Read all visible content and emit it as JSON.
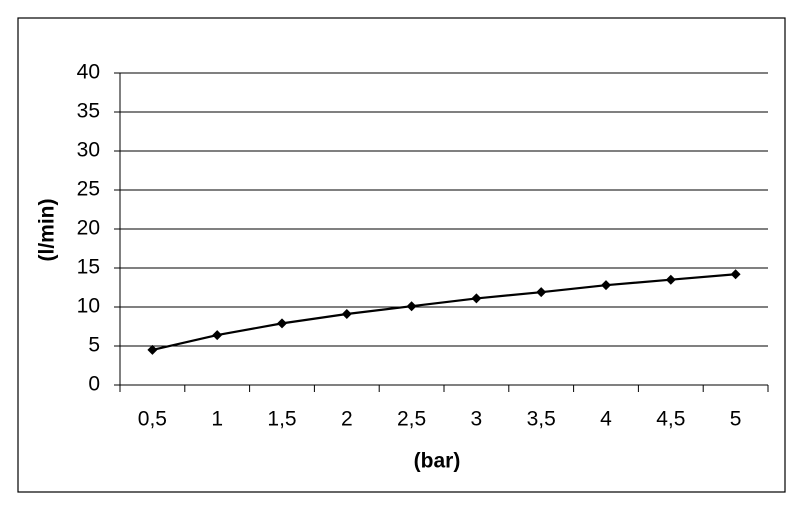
{
  "chart_data": {
    "type": "line",
    "x_label": "(bar)",
    "y_label": "(l/min)",
    "categories": [
      "0,5",
      "1",
      "1,5",
      "2",
      "2,5",
      "3",
      "3,5",
      "4",
      "4,5",
      "5"
    ],
    "values": [
      4.5,
      6.4,
      7.9,
      9.1,
      10.1,
      11.1,
      11.9,
      12.8,
      13.5,
      14.2
    ],
    "color": "#000000",
    "ylim": [
      0,
      40
    ],
    "yticks": [
      0,
      5,
      10,
      15,
      20,
      25,
      30,
      35,
      40
    ],
    "grid": true
  }
}
